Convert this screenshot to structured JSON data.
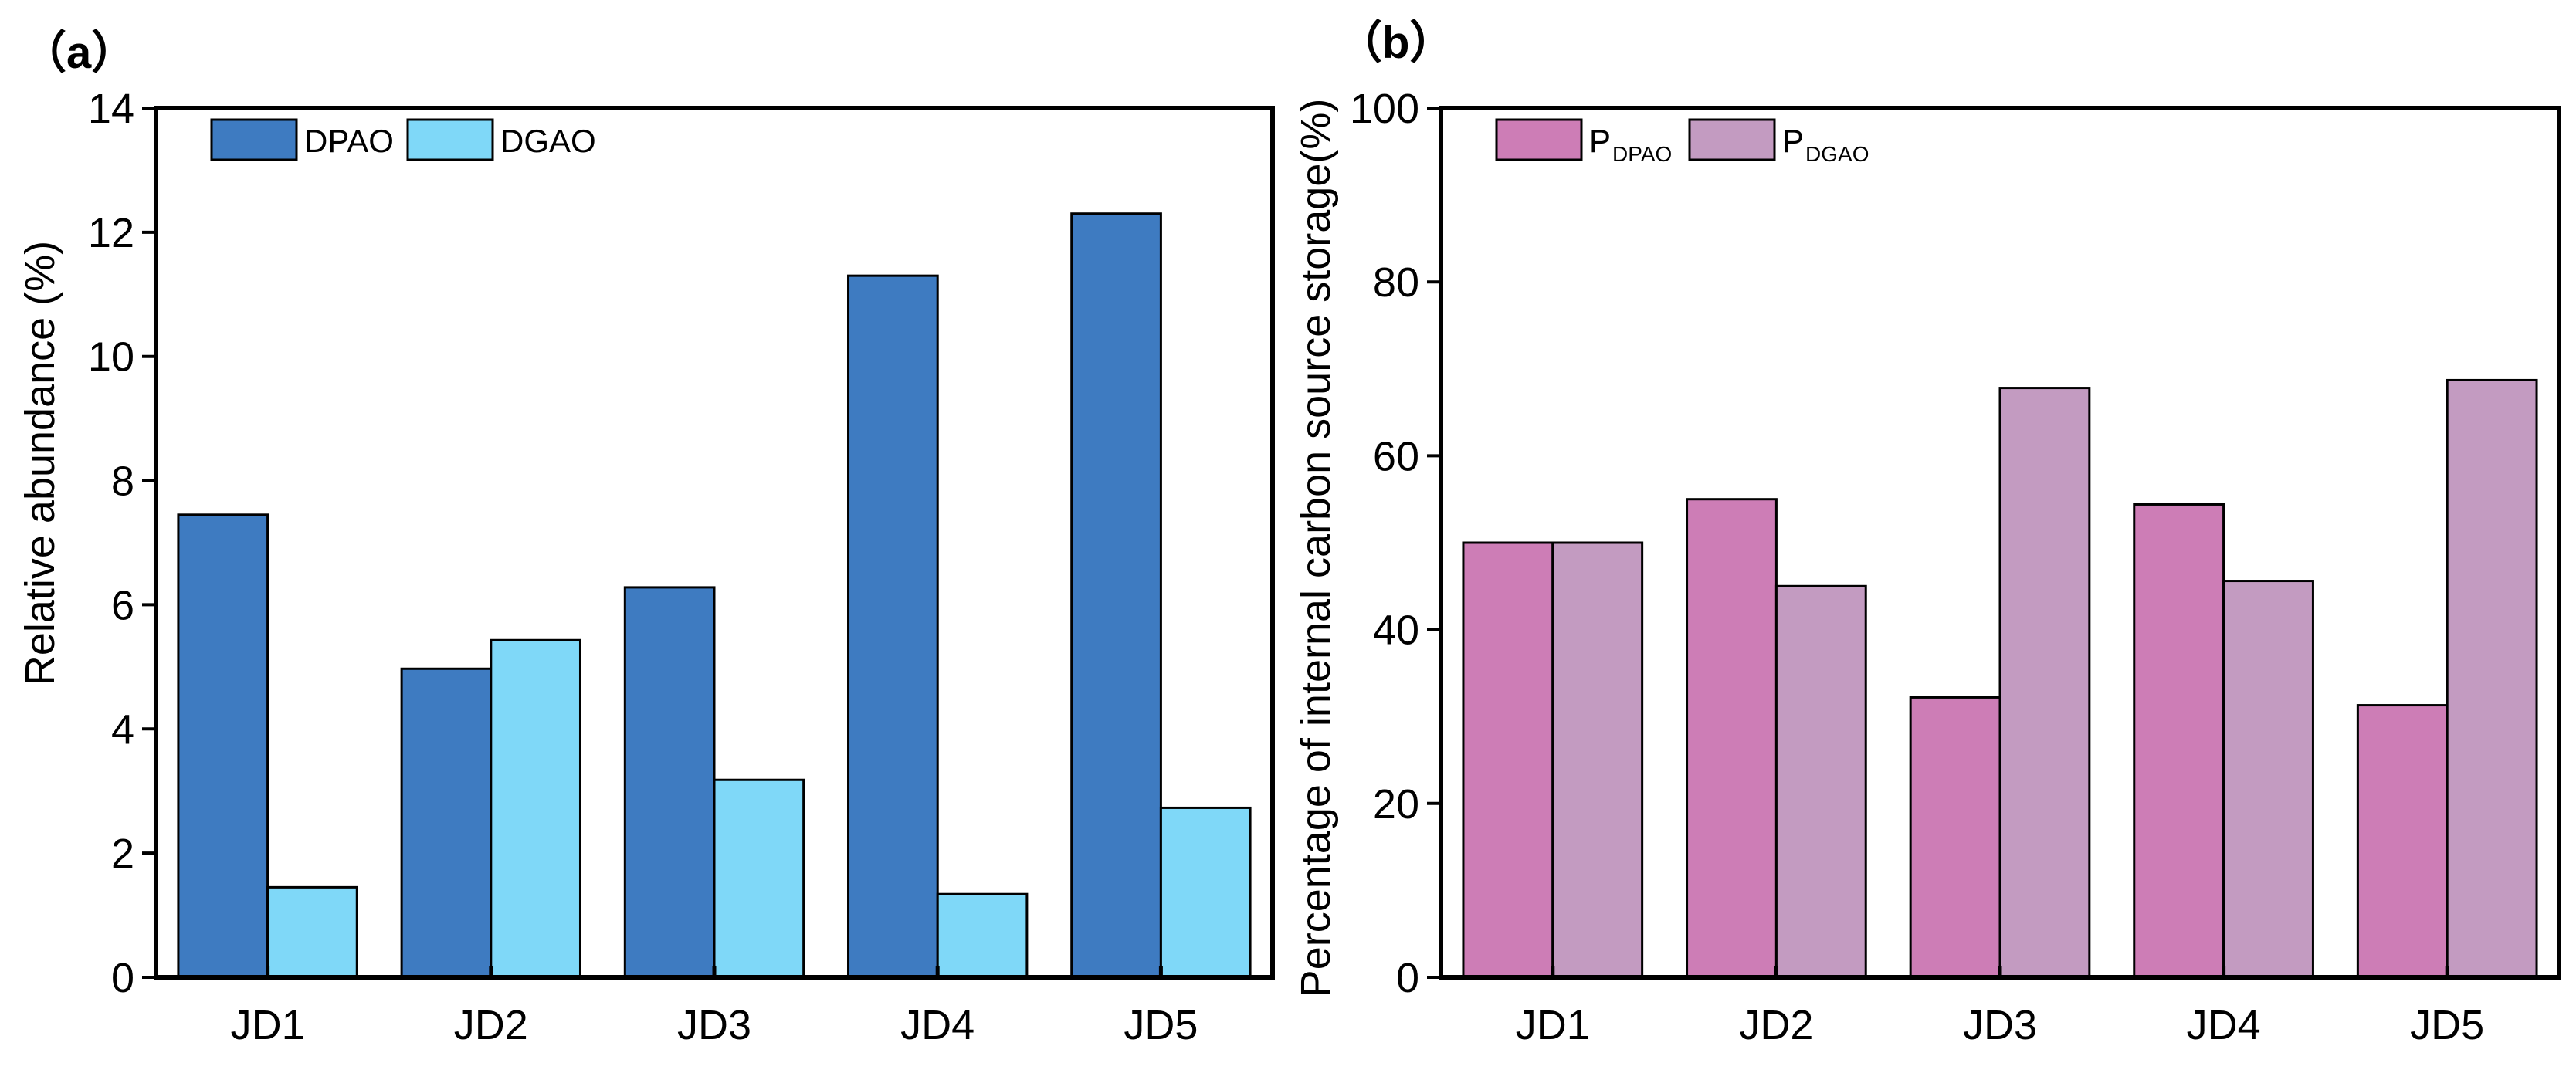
{
  "chart_data": [
    {
      "type": "bar",
      "panel_label": "（a）",
      "categories": [
        "JD1",
        "JD2",
        "JD3",
        "JD4",
        "JD5"
      ],
      "ylabel": "Relative abundance (%)",
      "ylim": [
        0,
        14
      ],
      "yticks": [
        "0",
        "2",
        "4",
        "6",
        "8",
        "10",
        "12",
        "14"
      ],
      "series": [
        {
          "name": "DPAO",
          "name_main": "DPAO",
          "name_sub": "",
          "color": "#3E7BC1",
          "values": [
            7.45,
            4.97,
            6.28,
            11.3,
            12.3
          ]
        },
        {
          "name": "DGAO",
          "name_main": "DGAO",
          "name_sub": "",
          "color": "#7FD8F8",
          "values": [
            1.45,
            5.43,
            3.18,
            1.34,
            2.73
          ]
        }
      ],
      "legend": "top-left",
      "grid": false
    },
    {
      "type": "bar",
      "panel_label": "（b）",
      "categories": [
        "JD1",
        "JD2",
        "JD3",
        "JD4",
        "JD5"
      ],
      "ylabel": "Percentage of internal carbon source storage(%)",
      "ylim": [
        0,
        100
      ],
      "yticks": [
        "0",
        "20",
        "40",
        "60",
        "80",
        "100"
      ],
      "series": [
        {
          "name": "PDPAO",
          "name_main": "P",
          "name_sub": "DPAO",
          "color": "#CD7DB6",
          "values": [
            50,
            55,
            32.2,
            54.4,
            31.3
          ]
        },
        {
          "name": "PDGAO",
          "name_main": "P",
          "name_sub": "DGAO",
          "color": "#C39BC1",
          "values": [
            50,
            45,
            67.8,
            45.6,
            68.7
          ]
        }
      ],
      "legend": "top-left",
      "grid": false
    }
  ]
}
